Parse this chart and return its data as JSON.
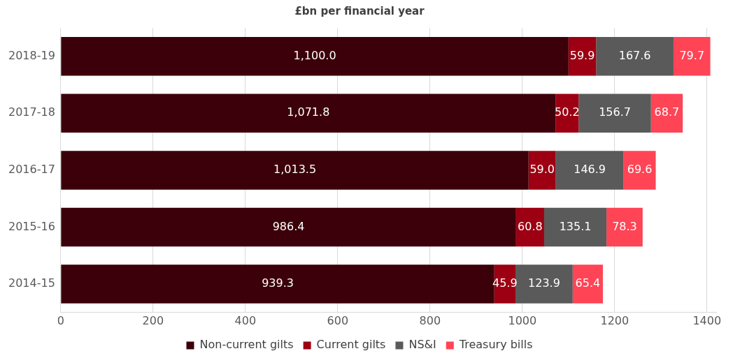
{
  "chart_data": {
    "type": "bar",
    "orientation": "horizontal",
    "stacked": true,
    "title": "£bn per financial year",
    "categories": [
      "2018-19",
      "2017-18",
      "2016-17",
      "2015-16",
      "2014-15"
    ],
    "series": [
      {
        "name": "Non-current gilts",
        "color": "#3b0009",
        "values": [
          1100.0,
          1071.8,
          1013.5,
          986.4,
          939.3
        ],
        "value_labels": [
          "1,100.0",
          "1,071.8",
          "1,013.5",
          "986.4",
          "939.3"
        ]
      },
      {
        "name": "Current gilts",
        "color": "#9c0012",
        "values": [
          59.9,
          50.2,
          59.0,
          60.8,
          45.9
        ],
        "value_labels": [
          "59.9",
          "50.2",
          "59.0",
          "60.8",
          "45.9"
        ]
      },
      {
        "name": "NS&I",
        "color": "#5a5a5a",
        "values": [
          167.6,
          156.7,
          146.9,
          135.1,
          123.9
        ],
        "value_labels": [
          "167.6",
          "156.7",
          "146.9",
          "135.1",
          "123.9"
        ]
      },
      {
        "name": "Treasury bills",
        "color": "#ff4456",
        "values": [
          79.7,
          68.7,
          69.6,
          78.3,
          65.4
        ],
        "value_labels": [
          "79.7",
          "68.7",
          "69.6",
          "78.3",
          "65.4"
        ]
      }
    ],
    "xlim": [
      0,
      1420
    ],
    "xticks": [
      0,
      200,
      400,
      600,
      800,
      1000,
      1200,
      1400
    ],
    "grid": "x",
    "legend": "bottom"
  }
}
